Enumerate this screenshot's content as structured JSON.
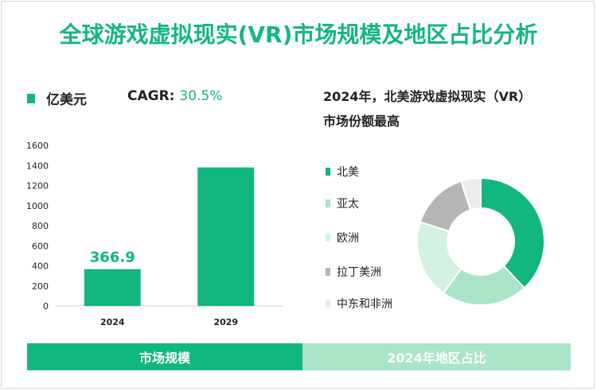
{
  "header": {
    "title": "全球游戏虚拟现实(VR)市场规模及地区占比分析"
  },
  "colors": {
    "title": "#12b77f",
    "bar": "#12b77f",
    "footer_left": "#12b77f",
    "footer_right": "#a9e5c6"
  },
  "bar_legend": {
    "label": "亿美元"
  },
  "cagr": {
    "label": "CAGR:",
    "value": "30.5%"
  },
  "pie_header": {
    "line1": "2024年，北美游戏虚拟现实（VR）",
    "line2": "市场份额最高"
  },
  "footer": {
    "left": "市场规模",
    "right": "2024年地区占比"
  },
  "chart_data": [
    {
      "type": "bar",
      "categories": [
        "2024",
        "2029"
      ],
      "values": [
        366.9,
        1381
      ],
      "data_labels": [
        "366.9",
        ""
      ],
      "ylim": [
        0,
        1600
      ],
      "yticks": [
        "0",
        "200",
        "400",
        "600",
        "800",
        "1000",
        "1200",
        "1400",
        "1600"
      ],
      "grid": false
    },
    {
      "type": "pie",
      "donut": true,
      "labels": [
        "北美",
        "亚太",
        "欧洲",
        "拉丁美洲",
        "中东和非洲"
      ],
      "values": [
        38,
        22,
        20,
        15,
        5
      ],
      "colors": [
        "#12b77f",
        "#a9e5c6",
        "#d4f2e1",
        "#b5b5b5",
        "#ececec"
      ],
      "legend": "left"
    }
  ]
}
